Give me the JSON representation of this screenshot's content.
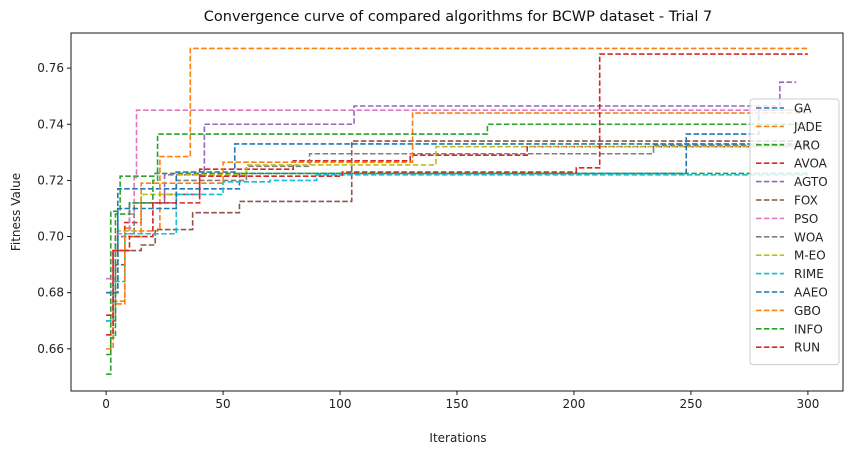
{
  "chart_data": {
    "type": "line",
    "title": "Convergence curve of compared algorithms for BCWP dataset - Trial 7",
    "xlabel": "Iterations",
    "ylabel": "Fitness Value",
    "xlim": [
      -15,
      315
    ],
    "ylim": [
      0.645,
      0.7725
    ],
    "xticks": [
      0,
      50,
      100,
      150,
      200,
      250,
      300
    ],
    "yticks": [
      0.66,
      0.68,
      0.7,
      0.72,
      0.74,
      0.76
    ],
    "ytick_labels": [
      "0.66",
      "0.68",
      "0.70",
      "0.72",
      "0.74",
      "0.76"
    ],
    "grid": false,
    "legend_position": "right",
    "line_style": "dashed",
    "series": [
      {
        "name": "GA",
        "color": "#1f77b4",
        "points": [
          [
            0,
            0.67
          ],
          [
            3,
            0.695
          ],
          [
            5,
            0.717
          ],
          [
            56,
            0.717
          ],
          [
            57,
            0.7225
          ],
          [
            247,
            0.7225
          ],
          [
            248,
            0.7365
          ],
          [
            278,
            0.7365
          ],
          [
            279,
            0.745
          ],
          [
            300,
            0.745
          ]
        ]
      },
      {
        "name": "JADE",
        "color": "#ff7f0e",
        "points": [
          [
            0,
            0.665
          ],
          [
            3,
            0.677
          ],
          [
            8,
            0.703
          ],
          [
            12,
            0.702
          ],
          [
            22,
            0.703
          ],
          [
            23,
            0.7285
          ],
          [
            35,
            0.7285
          ],
          [
            36,
            0.767
          ],
          [
            300,
            0.767
          ]
        ]
      },
      {
        "name": "ARO",
        "color": "#2ca02c",
        "points": [
          [
            0,
            0.658
          ],
          [
            2,
            0.709
          ],
          [
            6,
            0.7215
          ],
          [
            20,
            0.7215
          ],
          [
            21,
            0.7225
          ],
          [
            300,
            0.7225
          ]
        ]
      },
      {
        "name": "AVOA",
        "color": "#d62728",
        "points": [
          [
            0,
            0.672
          ],
          [
            3,
            0.695
          ],
          [
            8,
            0.705
          ],
          [
            15,
            0.712
          ],
          [
            25,
            0.715
          ],
          [
            40,
            0.724
          ],
          [
            80,
            0.727
          ],
          [
            120,
            0.727
          ],
          [
            130,
            0.729
          ],
          [
            180,
            0.732
          ],
          [
            300,
            0.734
          ]
        ]
      },
      {
        "name": "AGTO",
        "color": "#9467bd",
        "points": [
          [
            0,
            0.685
          ],
          [
            4,
            0.701
          ],
          [
            10,
            0.712
          ],
          [
            25,
            0.722
          ],
          [
            42,
            0.74
          ],
          [
            105,
            0.74
          ],
          [
            106,
            0.7465
          ],
          [
            287,
            0.7465
          ],
          [
            288,
            0.755
          ],
          [
            295,
            0.755
          ]
        ]
      },
      {
        "name": "FOX",
        "color": "#8c564b",
        "points": [
          [
            0,
            0.67
          ],
          [
            4,
            0.69
          ],
          [
            8,
            0.695
          ],
          [
            15,
            0.697
          ],
          [
            21,
            0.7025
          ],
          [
            36,
            0.7025
          ],
          [
            37,
            0.7085
          ],
          [
            56,
            0.7085
          ],
          [
            57,
            0.7125
          ],
          [
            104,
            0.7125
          ],
          [
            105,
            0.734
          ],
          [
            300,
            0.734
          ]
        ]
      },
      {
        "name": "PSO",
        "color": "#e377c2",
        "points": [
          [
            0,
            0.685
          ],
          [
            4,
            0.701
          ],
          [
            10,
            0.708
          ],
          [
            12,
            0.721
          ],
          [
            13,
            0.745
          ],
          [
            300,
            0.745
          ]
        ]
      },
      {
        "name": "WOA",
        "color": "#7f7f7f",
        "points": [
          [
            0,
            0.68
          ],
          [
            5,
            0.7
          ],
          [
            12,
            0.712
          ],
          [
            30,
            0.72
          ],
          [
            60,
            0.725
          ],
          [
            87,
            0.7295
          ],
          [
            233,
            0.7295
          ],
          [
            234,
            0.7325
          ],
          [
            300,
            0.7325
          ]
        ]
      },
      {
        "name": "M-EO",
        "color": "#bcbd22",
        "points": [
          [
            0,
            0.68
          ],
          [
            5,
            0.702
          ],
          [
            15,
            0.715
          ],
          [
            30,
            0.722
          ],
          [
            60,
            0.7255
          ],
          [
            140,
            0.7255
          ],
          [
            141,
            0.732
          ],
          [
            300,
            0.732
          ]
        ]
      },
      {
        "name": "RIME",
        "color": "#17becf",
        "points": [
          [
            0,
            0.67
          ],
          [
            3,
            0.684
          ],
          [
            8,
            0.701
          ],
          [
            29,
            0.701
          ],
          [
            30,
            0.715
          ],
          [
            50,
            0.7195
          ],
          [
            70,
            0.72
          ],
          [
            90,
            0.722
          ],
          [
            300,
            0.722
          ]
        ]
      },
      {
        "name": "AAEO",
        "color": "#1f77b4",
        "points": [
          [
            0,
            0.68
          ],
          [
            5,
            0.71
          ],
          [
            30,
            0.723
          ],
          [
            55,
            0.733
          ],
          [
            300,
            0.733
          ]
        ]
      },
      {
        "name": "GBO",
        "color": "#ff7f0e",
        "points": [
          [
            0,
            0.66
          ],
          [
            3,
            0.676
          ],
          [
            8,
            0.7
          ],
          [
            15,
            0.719
          ],
          [
            50,
            0.7265
          ],
          [
            130,
            0.7265
          ],
          [
            131,
            0.744
          ],
          [
            300,
            0.744
          ]
        ]
      },
      {
        "name": "INFO",
        "color": "#2ca02c",
        "points": [
          [
            0,
            0.651
          ],
          [
            2,
            0.664
          ],
          [
            4,
            0.708
          ],
          [
            10,
            0.712
          ],
          [
            20,
            0.72
          ],
          [
            22,
            0.7365
          ],
          [
            162,
            0.7365
          ],
          [
            163,
            0.74
          ],
          [
            300,
            0.74
          ]
        ]
      },
      {
        "name": "RUN",
        "color": "#d62728",
        "points": [
          [
            0,
            0.665
          ],
          [
            3,
            0.695
          ],
          [
            10,
            0.7
          ],
          [
            20,
            0.712
          ],
          [
            40,
            0.7215
          ],
          [
            100,
            0.7215
          ],
          [
            101,
            0.723
          ],
          [
            200,
            0.723
          ],
          [
            201,
            0.7245
          ],
          [
            210,
            0.7245
          ],
          [
            211,
            0.765
          ],
          [
            300,
            0.765
          ]
        ]
      }
    ]
  }
}
